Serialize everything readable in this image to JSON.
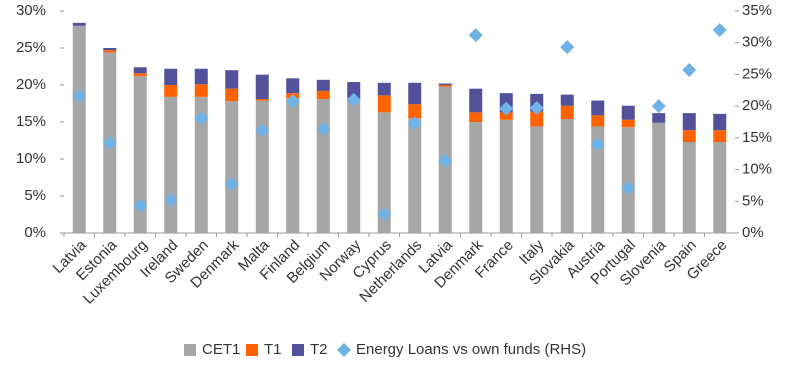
{
  "chart_data": {
    "type": "bar",
    "stacked": true,
    "categories": [
      "Latvia",
      "Estonia",
      "Luxembourg",
      "Ireland",
      "Sweden",
      "Denmark",
      "Malta",
      "Finland",
      "Belgium",
      "Norway",
      "Cyprus",
      "Netherlands",
      "Latvia",
      "Denmark",
      "France",
      "Italy",
      "Slovakia",
      "Austria",
      "Portugal",
      "Slovenia",
      "Spain",
      "Greece"
    ],
    "series": [
      {
        "name": "CET1",
        "color": "#a6a6a6",
        "values": [
          28.0,
          24.4,
          21.2,
          18.4,
          18.4,
          17.8,
          17.9,
          18.2,
          18.1,
          17.9,
          16.3,
          15.5,
          19.8,
          15.0,
          15.3,
          14.4,
          15.4,
          14.4,
          14.3,
          14.9,
          12.3,
          12.3
        ]
      },
      {
        "name": "T1",
        "color": "#ff6200",
        "values": [
          0,
          0.3,
          0.4,
          1.6,
          1.7,
          1.7,
          0.2,
          0.7,
          1.1,
          0.3,
          2.3,
          1.9,
          0.2,
          1.3,
          1.0,
          2.0,
          1.8,
          1.5,
          1.0,
          0,
          1.6,
          1.6
        ]
      },
      {
        "name": "T2",
        "color": "#525199",
        "values": [
          0.4,
          0.3,
          0.8,
          2.2,
          2.1,
          2.5,
          3.3,
          2.0,
          1.5,
          2.2,
          1.7,
          2.9,
          0.2,
          3.2,
          2.6,
          2.4,
          1.5,
          2.0,
          1.9,
          1.3,
          2.3,
          2.2
        ]
      },
      {
        "name": "Energy Loans vs own funds (RHS)",
        "color": "#6fb2e6",
        "type": "scatter",
        "marker": "diamond",
        "axis": "y2",
        "values": [
          21.6,
          14.2,
          4.3,
          5.2,
          18.1,
          7.7,
          16.2,
          20.8,
          16.4,
          21.0,
          3.0,
          17.3,
          11.4,
          31.2,
          19.6,
          19.7,
          29.3,
          14.0,
          7.1,
          20.0,
          25.7,
          32.0
        ]
      }
    ],
    "ylim": [
      0,
      30
    ],
    "yticks": [
      {
        "value": 0,
        "label": "0%"
      },
      {
        "value": 5,
        "label": "5%"
      },
      {
        "value": 10,
        "label": "10%"
      },
      {
        "value": 15,
        "label": "15%"
      },
      {
        "value": 20,
        "label": "20%"
      },
      {
        "value": 25,
        "label": "25%"
      },
      {
        "value": 30,
        "label": "30%"
      }
    ],
    "y2lim": [
      0,
      35
    ],
    "y2ticks": [
      {
        "value": 0,
        "label": "0%"
      },
      {
        "value": 5,
        "label": "5%"
      },
      {
        "value": 10,
        "label": "10%"
      },
      {
        "value": 15,
        "label": "15%"
      },
      {
        "value": 20,
        "label": "20%"
      },
      {
        "value": 25,
        "label": "25%"
      },
      {
        "value": 30,
        "label": "30%"
      },
      {
        "value": 35,
        "label": "35%"
      }
    ],
    "legend": "bottom"
  }
}
